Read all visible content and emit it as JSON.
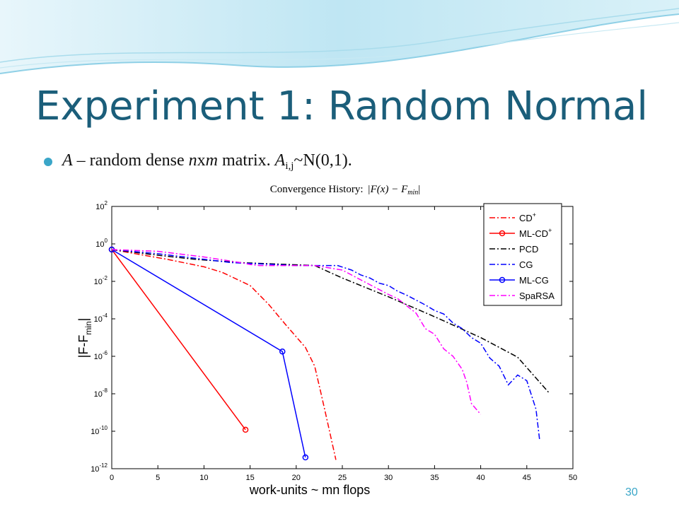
{
  "slide": {
    "title": "Experiment 1: Random Normal",
    "bullet": {
      "a1": "A",
      "t1": " – random dense ",
      "n": "n",
      "x": "x",
      "m": "m",
      "t2": " matrix.   ",
      "a2": "A",
      "sub": "i,j",
      "t3": "~N(0,1)."
    },
    "page_number": "30",
    "colors": {
      "title": "#1b5e7a",
      "accent": "#3aa6c8"
    }
  },
  "chart_data": {
    "type": "line",
    "title": "Convergence History: |F(x) − F_min|",
    "title_prefix": "Convergence History:",
    "title_formula": "|F(x) − F",
    "title_formula_sub": "min",
    "title_formula_end": "|",
    "xlabel": "work-units ~ mn flops",
    "ylabel": "|F-F",
    "ylabel_sub": "min",
    "ylabel_end": "|",
    "xlim": [
      0,
      50
    ],
    "ylim": [
      1e-12,
      100
    ],
    "y_scale": "log",
    "x_ticks": [
      "0",
      "5",
      "10",
      "15",
      "20",
      "25",
      "30",
      "35",
      "40",
      "45",
      "50"
    ],
    "y_ticks": [
      {
        "value": 100,
        "base": "10",
        "exp": "2"
      },
      {
        "value": 1,
        "base": "10",
        "exp": "0"
      },
      {
        "value": 0.01,
        "base": "10",
        "exp": "-2"
      },
      {
        "value": 0.0001,
        "base": "10",
        "exp": "-4"
      },
      {
        "value": 1e-06,
        "base": "10",
        "exp": "-6"
      },
      {
        "value": 1e-08,
        "base": "10",
        "exp": "-8"
      },
      {
        "value": 1e-10,
        "base": "10",
        "exp": "-10"
      },
      {
        "value": 1e-12,
        "base": "10",
        "exp": "-12"
      }
    ],
    "grid": false,
    "legend_position": "top-right",
    "series": [
      {
        "name": "CD",
        "name_sup": "+",
        "color": "#ff0000",
        "dash": "8,3,2,3",
        "marker": false,
        "x": [
          0,
          6,
          10,
          12,
          15,
          17,
          19,
          21,
          22,
          22.7,
          23.3,
          24.3
        ],
        "y": [
          0.5,
          0.15,
          0.06,
          0.03,
          0.006,
          0.0006,
          4e-05,
          3e-06,
          3e-07,
          1e-08,
          5e-10,
          3e-12
        ]
      },
      {
        "name": "ML-CD",
        "name_sup": "+",
        "color": "#ff0000",
        "dash": "",
        "marker": true,
        "x": [
          0,
          14.5
        ],
        "y": [
          0.5,
          1.2e-10
        ]
      },
      {
        "name": "PCD",
        "name_sup": "",
        "color": "#000000",
        "dash": "8,3,2,3",
        "marker": false,
        "x": [
          0,
          5,
          9,
          14,
          22,
          25,
          30,
          35,
          40,
          44,
          47.5
        ],
        "y": [
          0.5,
          0.25,
          0.15,
          0.1,
          0.07,
          0.015,
          0.0015,
          0.00013,
          1e-05,
          9e-07,
          1e-08
        ]
      },
      {
        "name": "CG",
        "name_sup": "",
        "color": "#0000ff",
        "dash": "8,3,2,3",
        "marker": false,
        "x": [
          0,
          5,
          10,
          13,
          20,
          24.5,
          26,
          27,
          28,
          29,
          30,
          31,
          32,
          33,
          34,
          35,
          36,
          37,
          38,
          39,
          40,
          41,
          42,
          43,
          44,
          45,
          46,
          46.4
        ],
        "y": [
          0.5,
          0.3,
          0.15,
          0.1,
          0.07,
          0.07,
          0.04,
          0.022,
          0.015,
          0.008,
          0.006,
          0.003,
          0.0018,
          0.001,
          0.00055,
          0.00028,
          0.00018,
          6e-05,
          3e-05,
          1e-05,
          5e-06,
          8e-07,
          3e-07,
          3e-08,
          1e-07,
          5e-08,
          1.5e-09,
          3e-11
        ]
      },
      {
        "name": "ML-CG",
        "name_sup": "",
        "color": "#0000ff",
        "dash": "",
        "marker": true,
        "x": [
          0,
          18.5,
          21
        ],
        "y": [
          0.5,
          1.8e-06,
          4e-12
        ]
      },
      {
        "name": "SpaRSA",
        "name_sup": "",
        "color": "#ff00ff",
        "dash": "8,3,2,3",
        "marker": false,
        "x": [
          0,
          5,
          10,
          14,
          15,
          16,
          22,
          25,
          27,
          30,
          31,
          33,
          34,
          35,
          36,
          37,
          38,
          38.5,
          39,
          40
        ],
        "y": [
          0.5,
          0.4,
          0.2,
          0.1,
          0.08,
          0.07,
          0.07,
          0.04,
          0.012,
          0.002,
          0.0012,
          0.0002,
          3e-05,
          1.5e-05,
          2.5e-06,
          1e-06,
          2e-07,
          4e-08,
          3e-09,
          8e-10
        ]
      }
    ]
  }
}
